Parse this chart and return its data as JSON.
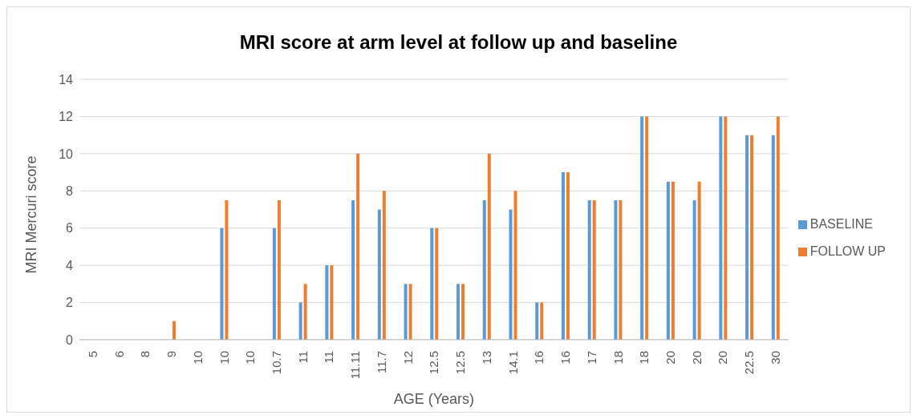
{
  "chart_data": {
    "type": "bar",
    "title": "MRI score at arm level at follow up and baseline",
    "xlabel": "AGE (Years)",
    "ylabel": "MRI Mercuri score",
    "categories": [
      "5",
      "6",
      "8",
      "9",
      "10",
      "10",
      "10",
      "10.7",
      "11",
      "11",
      "11.11",
      "11.7",
      "12",
      "12.5",
      "12.5",
      "13",
      "14.1",
      "16",
      "16",
      "17",
      "18",
      "18",
      "20",
      "20",
      "20",
      "22.5",
      "30"
    ],
    "series": [
      {
        "name": "BASELINE",
        "color": "#5b9bd5",
        "values": [
          0,
          0,
          0,
          0,
          0,
          6,
          0,
          6,
          2,
          4,
          7.5,
          7,
          3,
          6,
          3,
          7.5,
          7,
          2,
          9,
          7.5,
          7.5,
          12,
          8.5,
          7.5,
          12,
          11,
          11
        ]
      },
      {
        "name": "FOLLOW UP",
        "color": "#ed7d31",
        "values": [
          0,
          0,
          0,
          1,
          0,
          7.5,
          0,
          7.5,
          3,
          4,
          10,
          8,
          3,
          6,
          3,
          10,
          8,
          2,
          9,
          7.5,
          7.5,
          12,
          8.5,
          8.5,
          12,
          11,
          12
        ]
      }
    ],
    "ylim": [
      0,
      14
    ],
    "yticks": [
      0,
      2,
      4,
      6,
      8,
      10,
      12,
      14
    ],
    "grid": "y",
    "legend": "right"
  }
}
